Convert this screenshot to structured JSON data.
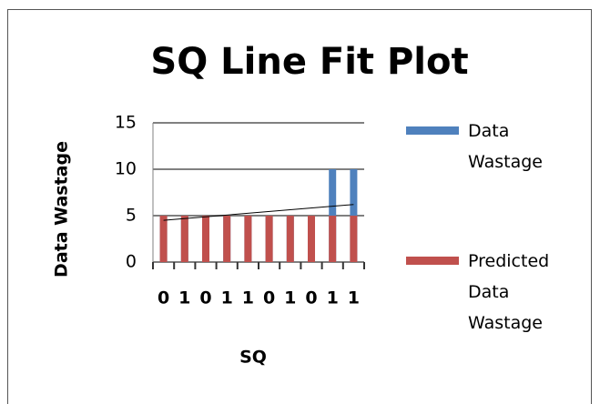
{
  "chart_data": {
    "type": "bar",
    "title": "SQ Line Fit  Plot",
    "x_label": "SQ",
    "y_label": "Data Wastage",
    "categories": [
      "0",
      "1",
      "0",
      "1",
      "1",
      "0",
      "1",
      "0",
      "1",
      "1"
    ],
    "series": [
      {
        "name": "Data Wastage",
        "color": "#4f81bd",
        "values": [
          5,
          5,
          5,
          5,
          5,
          5,
          5,
          5,
          10,
          10
        ]
      },
      {
        "name": "Predicted Data Wastage",
        "color": "#c0504d",
        "values": [
          5,
          5,
          5,
          5,
          5,
          5,
          5,
          5,
          5,
          5
        ]
      }
    ],
    "trendline": [
      4.5,
      6.2
    ],
    "ylim": [
      0,
      15
    ],
    "yticks": [
      0,
      5,
      10,
      15
    ],
    "grid": true,
    "legend": "right"
  }
}
